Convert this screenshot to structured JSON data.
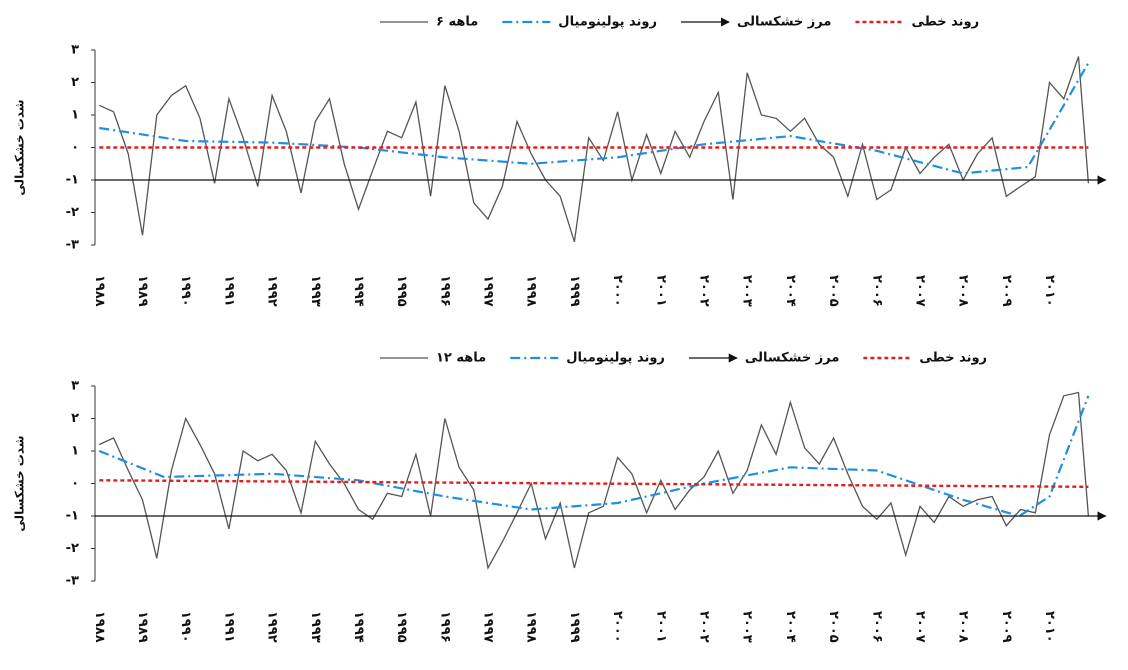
{
  "chart_data": [
    {
      "type": "line",
      "y_label": "شدت خشکسالی",
      "legend": "top",
      "xlim": [
        1987.9,
        2011.4
      ],
      "ylim": [
        -3,
        3
      ],
      "yticks": [
        {
          "value": 3,
          "label": "۳"
        },
        {
          "value": 2,
          "label": "۲"
        },
        {
          "value": 1,
          "label": "۱"
        },
        {
          "value": 0,
          "label": "۰"
        },
        {
          "value": -1,
          "label": "-۱"
        },
        {
          "value": -2,
          "label": "-۲"
        },
        {
          "value": -3,
          "label": "-۳"
        }
      ],
      "xticks": [
        {
          "value": 1988,
          "label": "۱۹۸۸"
        },
        {
          "value": 1989,
          "label": "۱۹۸۹"
        },
        {
          "value": 1990,
          "label": "۱۹۹۰"
        },
        {
          "value": 1991,
          "label": "۱۹۹۱"
        },
        {
          "value": 1992,
          "label": "۱۹۹۲"
        },
        {
          "value": 1993,
          "label": "۱۹۹۳"
        },
        {
          "value": 1994,
          "label": "۱۹۹۴"
        },
        {
          "value": 1995,
          "label": "۱۹۹۵"
        },
        {
          "value": 1996,
          "label": "۱۹۹۶"
        },
        {
          "value": 1997,
          "label": "۱۹۹۷"
        },
        {
          "value": 1998,
          "label": "۱۹۹۸"
        },
        {
          "value": 1999,
          "label": "۱۹۹۹"
        },
        {
          "value": 2000,
          "label": "۲۰۰۰"
        },
        {
          "value": 2001,
          "label": "۲۰۰۱"
        },
        {
          "value": 2002,
          "label": "۲۰۰۲"
        },
        {
          "value": 2003,
          "label": "۲۰۰۳"
        },
        {
          "value": 2004,
          "label": "۲۰۰۴"
        },
        {
          "value": 2005,
          "label": "۲۰۰۵"
        },
        {
          "value": 2006,
          "label": "۲۰۰۶"
        },
        {
          "value": 2007,
          "label": "۲۰۰۷"
        },
        {
          "value": 2008,
          "label": "۲۰۰۸"
        },
        {
          "value": 2009,
          "label": "۲۰۰۹"
        },
        {
          "value": 2010,
          "label": "۲۰۱۰"
        }
      ],
      "series": [
        {
          "name": "۶ ماهه",
          "color": "#555555",
          "style": "solid",
          "x": [
            1988,
            1988.33,
            1988.67,
            1989,
            1989.33,
            1989.67,
            1990,
            1990.33,
            1990.67,
            1991,
            1991.33,
            1991.67,
            1992,
            1992.33,
            1992.67,
            1993,
            1993.33,
            1993.67,
            1994,
            1994.33,
            1994.67,
            1995,
            1995.33,
            1995.67,
            1996,
            1996.33,
            1996.67,
            1997,
            1997.33,
            1997.67,
            1998,
            1998.33,
            1998.67,
            1999,
            1999.33,
            1999.67,
            2000,
            2000.33,
            2000.67,
            2001,
            2001.33,
            2001.67,
            2002,
            2002.33,
            2002.67,
            2003,
            2003.33,
            2003.67,
            2004,
            2004.33,
            2004.67,
            2005,
            2005.33,
            2005.67,
            2006,
            2006.33,
            2006.67,
            2007,
            2007.33,
            2007.67,
            2008,
            2008.33,
            2008.67,
            2009,
            2009.33,
            2009.67,
            2010,
            2010.33,
            2010.67,
            2010.9
          ],
          "values": [
            1.3,
            1.1,
            -0.2,
            -2.7,
            1.0,
            1.6,
            1.9,
            0.9,
            -1.1,
            1.5,
            0.3,
            -1.2,
            1.6,
            0.5,
            -1.4,
            0.8,
            1.5,
            -0.5,
            -1.9,
            -0.7,
            0.5,
            0.3,
            1.4,
            -1.5,
            1.9,
            0.5,
            -1.7,
            -2.2,
            -1.2,
            0.8,
            -0.2,
            -1.0,
            -1.5,
            -2.9,
            0.3,
            -0.4,
            1.1,
            -1.0,
            0.4,
            -0.8,
            0.5,
            -0.3,
            0.8,
            1.7,
            -1.6,
            2.3,
            1.0,
            0.9,
            0.5,
            0.9,
            0.1,
            -0.3,
            -1.5,
            0.1,
            -1.6,
            -1.3,
            0.0,
            -0.8,
            -0.3,
            0.1,
            -1.0,
            -0.2,
            0.3,
            -1.5,
            -1.2,
            -0.9,
            2.0,
            1.5,
            2.8,
            -1.1
          ]
        },
        {
          "name": "روند پولینومیال",
          "color": "#1f8fe0",
          "style": "dash-dot",
          "x": [
            1988,
            1990,
            1992,
            1994,
            1996,
            1998,
            2000,
            2002,
            2004,
            2006,
            2008,
            2009.5,
            2010.9
          ],
          "values": [
            0.6,
            0.2,
            0.15,
            0.0,
            -0.3,
            -0.5,
            -0.3,
            0.1,
            0.35,
            -0.1,
            -0.8,
            -0.6,
            2.6
          ]
        },
        {
          "name": "مرز خشکسالی",
          "color": "#111111",
          "style": "arrow",
          "x": [
            1987.9,
            2011.3
          ],
          "values": [
            -1,
            -1
          ]
        },
        {
          "name": "روند خطی",
          "color": "#e02020",
          "style": "dotted",
          "x": [
            1988,
            2010.9
          ],
          "values": [
            0,
            0
          ]
        }
      ]
    },
    {
      "type": "line",
      "y_label": "شدت خشکسالی",
      "legend": "top",
      "xlim": [
        1987.9,
        2011.4
      ],
      "ylim": [
        -3,
        3
      ],
      "yticks": [
        {
          "value": 3,
          "label": "۳"
        },
        {
          "value": 2,
          "label": "۲"
        },
        {
          "value": 1,
          "label": "۱"
        },
        {
          "value": 0,
          "label": "۰"
        },
        {
          "value": -1,
          "label": "-۱"
        },
        {
          "value": -2,
          "label": "-۲"
        },
        {
          "value": -3,
          "label": "-۳"
        }
      ],
      "xticks": [
        {
          "value": 1988,
          "label": "۱۹۸۸"
        },
        {
          "value": 1989,
          "label": "۱۹۸۹"
        },
        {
          "value": 1990,
          "label": "۱۹۹۰"
        },
        {
          "value": 1991,
          "label": "۱۹۹۱"
        },
        {
          "value": 1992,
          "label": "۱۹۹۲"
        },
        {
          "value": 1993,
          "label": "۱۹۹۳"
        },
        {
          "value": 1994,
          "label": "۱۹۹۴"
        },
        {
          "value": 1995,
          "label": "۱۹۹۵"
        },
        {
          "value": 1996,
          "label": "۱۹۹۶"
        },
        {
          "value": 1997,
          "label": "۱۹۹۷"
        },
        {
          "value": 1998,
          "label": "۱۹۹۸"
        },
        {
          "value": 1999,
          "label": "۱۹۹۹"
        },
        {
          "value": 2000,
          "label": "۲۰۰۰"
        },
        {
          "value": 2001,
          "label": "۲۰۰۱"
        },
        {
          "value": 2002,
          "label": "۲۰۰۲"
        },
        {
          "value": 2003,
          "label": "۲۰۰۳"
        },
        {
          "value": 2004,
          "label": "۲۰۰۴"
        },
        {
          "value": 2005,
          "label": "۲۰۰۵"
        },
        {
          "value": 2006,
          "label": "۲۰۰۶"
        },
        {
          "value": 2007,
          "label": "۲۰۰۷"
        },
        {
          "value": 2008,
          "label": "۲۰۰۸"
        },
        {
          "value": 2009,
          "label": "۲۰۰۹"
        },
        {
          "value": 2010,
          "label": "۲۰۱۰"
        }
      ],
      "series": [
        {
          "name": "۱۲ ماهه",
          "color": "#555555",
          "style": "solid",
          "x": [
            1988,
            1988.33,
            1988.67,
            1989,
            1989.33,
            1989.67,
            1990,
            1990.33,
            1990.67,
            1991,
            1991.33,
            1991.67,
            1992,
            1992.33,
            1992.67,
            1993,
            1993.33,
            1993.67,
            1994,
            1994.33,
            1994.67,
            1995,
            1995.33,
            1995.67,
            1996,
            1996.33,
            1996.67,
            1997,
            1997.33,
            1997.67,
            1998,
            1998.33,
            1998.67,
            1999,
            1999.33,
            1999.67,
            2000,
            2000.33,
            2000.67,
            2001,
            2001.33,
            2001.67,
            2002,
            2002.33,
            2002.67,
            2003,
            2003.33,
            2003.67,
            2004,
            2004.33,
            2004.67,
            2005,
            2005.33,
            2005.67,
            2006,
            2006.33,
            2006.67,
            2007,
            2007.33,
            2007.67,
            2008,
            2008.33,
            2008.67,
            2009,
            2009.33,
            2009.67,
            2010,
            2010.33,
            2010.67,
            2010.9
          ],
          "values": [
            1.2,
            1.4,
            0.4,
            -0.5,
            -2.3,
            0.4,
            2.0,
            1.2,
            0.3,
            -1.4,
            1.0,
            0.7,
            0.9,
            0.4,
            -0.9,
            1.3,
            0.6,
            0.0,
            -0.8,
            -1.1,
            -0.3,
            -0.4,
            0.9,
            -1.0,
            2.0,
            0.5,
            -0.2,
            -2.6,
            -1.8,
            -0.9,
            0.0,
            -1.7,
            -0.6,
            -2.6,
            -0.9,
            -0.7,
            0.8,
            0.3,
            -0.9,
            0.1,
            -0.8,
            -0.2,
            0.2,
            1.0,
            -0.3,
            0.4,
            1.8,
            0.9,
            2.5,
            1.1,
            0.6,
            1.4,
            0.3,
            -0.7,
            -1.1,
            -0.6,
            -2.2,
            -0.7,
            -1.2,
            -0.4,
            -0.7,
            -0.5,
            -0.4,
            -1.3,
            -0.8,
            -0.9,
            1.5,
            2.7,
            2.8,
            -1.0
          ]
        },
        {
          "name": "روند پولینومیال",
          "color": "#1f8fe0",
          "style": "dash-dot",
          "x": [
            1988,
            1989.5,
            1992,
            1994,
            1996,
            1998,
            2000,
            2002,
            2004,
            2006,
            2008,
            2009.3,
            2010,
            2010.9
          ],
          "values": [
            1.0,
            0.2,
            0.3,
            0.1,
            -0.4,
            -0.8,
            -0.6,
            0.0,
            0.5,
            0.4,
            -0.5,
            -1.0,
            -0.4,
            2.7
          ]
        },
        {
          "name": "مرز خشکسالی",
          "color": "#111111",
          "style": "arrow",
          "x": [
            1987.9,
            2011.3
          ],
          "values": [
            -1,
            -1
          ]
        },
        {
          "name": "روند خطی",
          "color": "#e02020",
          "style": "dotted",
          "x": [
            1988,
            2010.9
          ],
          "values": [
            0.1,
            -0.1
          ]
        }
      ]
    }
  ]
}
